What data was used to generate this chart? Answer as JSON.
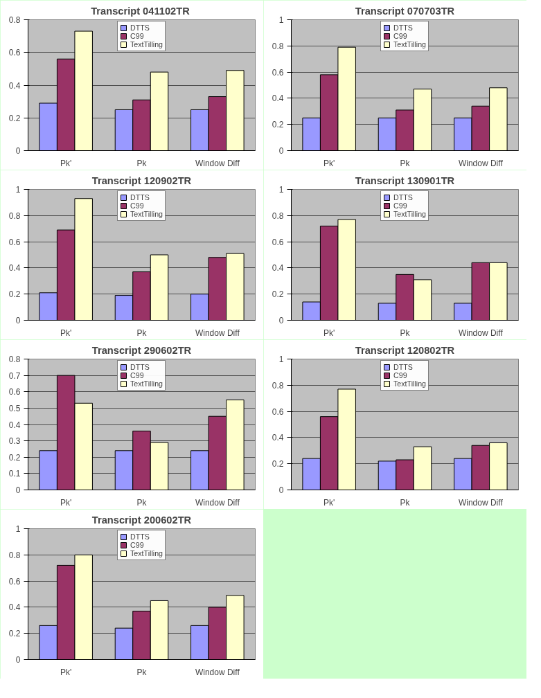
{
  "chart_data": [
    {
      "type": "bar",
      "title": "Transcript  041102TR",
      "categories": [
        "Pk'",
        "Pk",
        "Window Diff"
      ],
      "ylim": [
        0,
        0.8
      ],
      "yticks": [
        0,
        0.2,
        0.4,
        0.6,
        0.8
      ],
      "grid": "y",
      "legend": "top",
      "series": [
        {
          "name": "DTTS",
          "color": "#9999ff",
          "values": [
            0.29,
            0.25,
            0.25
          ]
        },
        {
          "name": "C99",
          "color": "#993366",
          "values": [
            0.56,
            0.31,
            0.33
          ]
        },
        {
          "name": "TextTilling",
          "color": "#ffffcc",
          "values": [
            0.73,
            0.48,
            0.49
          ]
        }
      ]
    },
    {
      "type": "bar",
      "title": "Transcript 070703TR",
      "categories": [
        "Pk'",
        "Pk",
        "Window Diff"
      ],
      "ylim": [
        0,
        1
      ],
      "yticks": [
        0,
        0.2,
        0.4,
        0.6,
        0.8,
        1
      ],
      "grid": "y",
      "legend": "top",
      "series": [
        {
          "name": "DTTS",
          "color": "#9999ff",
          "values": [
            0.25,
            0.25,
            0.25
          ]
        },
        {
          "name": "C99",
          "color": "#993366",
          "values": [
            0.58,
            0.31,
            0.34
          ]
        },
        {
          "name": "TextTilling",
          "color": "#ffffcc",
          "values": [
            0.79,
            0.47,
            0.48
          ]
        }
      ]
    },
    {
      "type": "bar",
      "title": "Transcript 120902TR",
      "categories": [
        "Pk'",
        "Pk",
        "Window Diff"
      ],
      "ylim": [
        0,
        1
      ],
      "yticks": [
        0,
        0.2,
        0.4,
        0.6,
        0.8,
        1
      ],
      "grid": "y",
      "legend": "top",
      "series": [
        {
          "name": "DTTS",
          "color": "#9999ff",
          "values": [
            0.21,
            0.19,
            0.2
          ]
        },
        {
          "name": "C99",
          "color": "#993366",
          "values": [
            0.69,
            0.37,
            0.48
          ]
        },
        {
          "name": "TextTilling",
          "color": "#ffffcc",
          "values": [
            0.93,
            0.5,
            0.51
          ]
        }
      ]
    },
    {
      "type": "bar",
      "title": "Transcript 130901TR",
      "categories": [
        "Pk'",
        "Pk",
        "Window Diff"
      ],
      "ylim": [
        0,
        1
      ],
      "yticks": [
        0,
        0.2,
        0.4,
        0.6,
        0.8,
        1
      ],
      "grid": "y",
      "legend": "top",
      "series": [
        {
          "name": "DTTS",
          "color": "#9999ff",
          "values": [
            0.14,
            0.13,
            0.13
          ]
        },
        {
          "name": "C99",
          "color": "#993366",
          "values": [
            0.72,
            0.35,
            0.44
          ]
        },
        {
          "name": "TextTilling",
          "color": "#ffffcc",
          "values": [
            0.77,
            0.31,
            0.44
          ]
        }
      ]
    },
    {
      "type": "bar",
      "title": "Transcript 290602TR",
      "categories": [
        "Pk'",
        "Pk",
        "Window Diff"
      ],
      "ylim": [
        0,
        0.8
      ],
      "yticks": [
        0,
        0.1,
        0.2,
        0.3,
        0.4,
        0.5,
        0.6,
        0.7,
        0.8
      ],
      "grid": "y",
      "legend": "top",
      "series": [
        {
          "name": "DTTS",
          "color": "#9999ff",
          "values": [
            0.24,
            0.24,
            0.24
          ]
        },
        {
          "name": "C99",
          "color": "#993366",
          "values": [
            0.7,
            0.36,
            0.45
          ]
        },
        {
          "name": "TextTilling",
          "color": "#ffffcc",
          "values": [
            0.53,
            0.29,
            0.55
          ]
        }
      ]
    },
    {
      "type": "bar",
      "title": "Transcript 120802TR",
      "categories": [
        "Pk'",
        "Pk",
        "Window Diff"
      ],
      "ylim": [
        0,
        1
      ],
      "yticks": [
        0,
        0.2,
        0.4,
        0.6,
        0.8,
        1
      ],
      "grid": "y",
      "legend": "top",
      "series": [
        {
          "name": "DTTS",
          "color": "#9999ff",
          "values": [
            0.24,
            0.22,
            0.24
          ]
        },
        {
          "name": "C99",
          "color": "#993366",
          "values": [
            0.56,
            0.23,
            0.34
          ]
        },
        {
          "name": "TextTilling",
          "color": "#ffffcc",
          "values": [
            0.77,
            0.33,
            0.36
          ]
        }
      ]
    },
    {
      "type": "bar",
      "title": "Transcript 200602TR",
      "categories": [
        "Pk'",
        "Pk",
        "Window Diff"
      ],
      "ylim": [
        0,
        1
      ],
      "yticks": [
        0,
        0.2,
        0.4,
        0.6,
        0.8,
        1
      ],
      "grid": "y",
      "legend": "top",
      "series": [
        {
          "name": "DTTS",
          "color": "#9999ff",
          "values": [
            0.26,
            0.24,
            0.26
          ]
        },
        {
          "name": "C99",
          "color": "#993366",
          "values": [
            0.72,
            0.37,
            0.4
          ]
        },
        {
          "name": "TextTilling",
          "color": "#ffffcc",
          "values": [
            0.8,
            0.45,
            0.49
          ]
        }
      ]
    }
  ]
}
